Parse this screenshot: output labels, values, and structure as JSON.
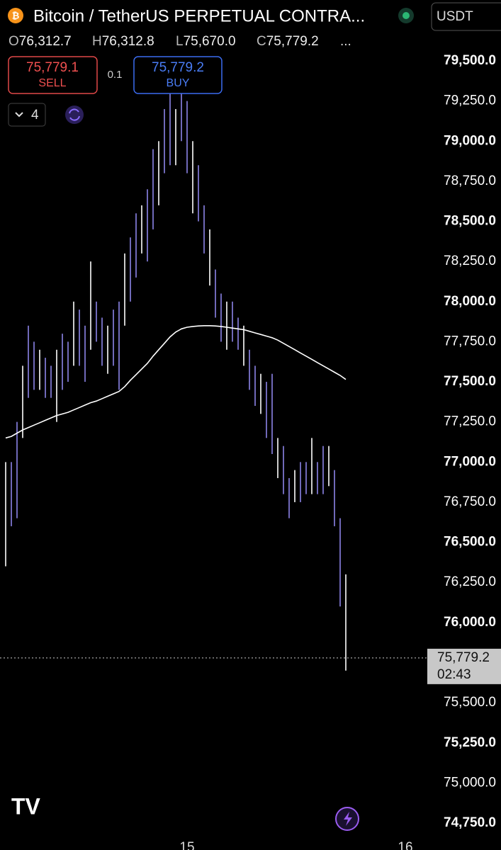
{
  "header": {
    "title": "Bitcoin / TetherUS PERPETUAL CONTRA...",
    "currency": "USDT",
    "ohlc": [
      {
        "key": "O",
        "value": "76,312.7"
      },
      {
        "key": "H",
        "value": "76,312.8"
      },
      {
        "key": "L",
        "value": "75,670.0"
      },
      {
        "key": "C",
        "value": "75,779.2"
      }
    ],
    "more": "...",
    "sell_price": "75,779.1",
    "sell_label": "SELL",
    "spread": "0.1",
    "buy_price": "75,779.2",
    "buy_label": "BUY",
    "indicator_count": "4"
  },
  "chart_data": {
    "type": "ohlc",
    "x": [
      1,
      2,
      3,
      4,
      5,
      6,
      7,
      8,
      9,
      10,
      11,
      12,
      13,
      14,
      15,
      16,
      17,
      18,
      19,
      20,
      21,
      22,
      23,
      24,
      25,
      26,
      27,
      28,
      29,
      30,
      31,
      32,
      33,
      34,
      35,
      36,
      37,
      38,
      39,
      40,
      41,
      42,
      43,
      44,
      45,
      46,
      47,
      48,
      49,
      50,
      51,
      52,
      53,
      54,
      55,
      56,
      57,
      58,
      59,
      60,
      61
    ],
    "high": [
      77000,
      77000,
      77250,
      77600,
      77850,
      77750,
      77700,
      77650,
      77600,
      77700,
      77800,
      77750,
      78000,
      77950,
      77850,
      78250,
      78000,
      77900,
      77850,
      77950,
      78000,
      78300,
      78400,
      78550,
      78600,
      78700,
      78950,
      79000,
      79200,
      79300,
      79200,
      79350,
      79250,
      79000,
      78850,
      78600,
      78450,
      78200,
      78050,
      78000,
      78000,
      77900,
      77850,
      77700,
      77600,
      77550,
      77500,
      77550,
      77150,
      77100,
      76900,
      76950,
      77000,
      77000,
      77150,
      77000,
      77100,
      77100,
      76950,
      76650,
      76300
    ],
    "low": [
      76350,
      76600,
      76650,
      77150,
      77400,
      77450,
      77450,
      77400,
      77400,
      77250,
      77450,
      77500,
      77600,
      77600,
      77500,
      77700,
      77750,
      77600,
      77550,
      77600,
      77450,
      77850,
      78000,
      78150,
      78300,
      78250,
      78450,
      78600,
      78800,
      78850,
      78850,
      79000,
      78800,
      78550,
      78500,
      78300,
      78100,
      77900,
      77750,
      77700,
      77750,
      77700,
      77600,
      77450,
      77350,
      77300,
      77150,
      77050,
      76900,
      76800,
      76650,
      76750,
      76750,
      76800,
      76800,
      76800,
      76800,
      76850,
      76600,
      76100,
      75700
    ],
    "bar_color": "#8d84e8",
    "ma": [
      77150,
      77160,
      77180,
      77200,
      77215,
      77230,
      77245,
      77260,
      77275,
      77290,
      77300,
      77310,
      77325,
      77340,
      77355,
      77370,
      77380,
      77395,
      77410,
      77425,
      77440,
      77470,
      77510,
      77545,
      77580,
      77615,
      77660,
      77700,
      77740,
      77780,
      77810,
      77830,
      77840,
      77845,
      77848,
      77850,
      77850,
      77848,
      77845,
      77840,
      77835,
      77830,
      77825,
      77815,
      77805,
      77795,
      77785,
      77775,
      77760,
      77740,
      77720,
      77700,
      77680,
      77660,
      77640,
      77620,
      77600,
      77580,
      77560,
      77540,
      77515
    ],
    "ma_color": "#ffffff",
    "xlim": [
      0,
      88.375
    ],
    "xticks": [
      {
        "value": 33,
        "label": "15"
      },
      {
        "value": 71.5,
        "label": "16"
      }
    ],
    "ylim": [
      74750,
      79500
    ],
    "yticks": [
      {
        "value": 79500,
        "label": "79,500.0"
      },
      {
        "value": 79250,
        "label": "79,250.0"
      },
      {
        "value": 79000,
        "label": "79,000.0"
      },
      {
        "value": 78750,
        "label": "78,750.0"
      },
      {
        "value": 78500,
        "label": "78,500.0"
      },
      {
        "value": 78250,
        "label": "78,250.0"
      },
      {
        "value": 78000,
        "label": "78,000.0"
      },
      {
        "value": 77750,
        "label": "77,750.0"
      },
      {
        "value": 77500,
        "label": "77,500.0"
      },
      {
        "value": 77250,
        "label": "77,250.0"
      },
      {
        "value": 77000,
        "label": "77,000.0"
      },
      {
        "value": 76750,
        "label": "76,750.0"
      },
      {
        "value": 76500,
        "label": "76,500.0"
      },
      {
        "value": 76250,
        "label": "76,250.0"
      },
      {
        "value": 76000,
        "label": "76,000.0"
      },
      {
        "value": 75500,
        "label": "75,500.0"
      },
      {
        "value": 75250,
        "label": "75,250.0"
      },
      {
        "value": 75000,
        "label": "75,000.0"
      },
      {
        "value": 74750,
        "label": "74,750.0"
      }
    ],
    "last_price": {
      "value": 75779.2,
      "label": "75,779.2"
    },
    "countdown": "02:43"
  }
}
